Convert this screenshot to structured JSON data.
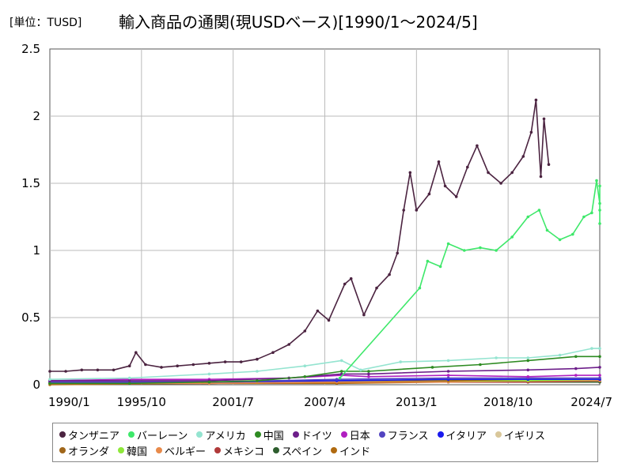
{
  "unit_label": "[単位：TUSD]",
  "title": "輸入商品の通関(現USDベース)[1990/1～2024/5]",
  "chart_data": {
    "type": "line",
    "x_ticks": [
      "1990/1",
      "1995/10",
      "2001/7",
      "2007/4",
      "2013/1",
      "2018/10",
      "2024/7"
    ],
    "y_ticks": [
      "0",
      "0.5",
      "1",
      "1.5",
      "2",
      "2.5"
    ],
    "ylim": [
      0,
      2.5
    ],
    "xlim": [
      1990.0,
      2024.5
    ],
    "grid": true,
    "legend_position": "bottom",
    "series": [
      {
        "name": "タンザニア",
        "color": "#4b2340",
        "points": [
          [
            1990.0,
            0.1
          ],
          [
            1991.0,
            0.1
          ],
          [
            1992.0,
            0.11
          ],
          [
            1993.0,
            0.11
          ],
          [
            1994.0,
            0.11
          ],
          [
            1995.0,
            0.14
          ],
          [
            1995.4,
            0.24
          ],
          [
            1996.0,
            0.15
          ],
          [
            1997.0,
            0.13
          ],
          [
            1998.0,
            0.14
          ],
          [
            1999.0,
            0.15
          ],
          [
            2000.0,
            0.16
          ],
          [
            2001.0,
            0.17
          ],
          [
            2002.0,
            0.17
          ],
          [
            2003.0,
            0.19
          ],
          [
            2004.0,
            0.24
          ],
          [
            2005.0,
            0.3
          ],
          [
            2006.0,
            0.4
          ],
          [
            2006.8,
            0.55
          ],
          [
            2007.5,
            0.48
          ],
          [
            2008.5,
            0.75
          ],
          [
            2008.9,
            0.79
          ],
          [
            2009.7,
            0.52
          ],
          [
            2010.5,
            0.72
          ],
          [
            2011.3,
            0.82
          ],
          [
            2011.8,
            0.98
          ],
          [
            2012.2,
            1.3
          ],
          [
            2012.6,
            1.58
          ],
          [
            2013.0,
            1.3
          ],
          [
            2013.8,
            1.42
          ],
          [
            2014.4,
            1.66
          ],
          [
            2014.8,
            1.48
          ],
          [
            2015.5,
            1.4
          ],
          [
            2016.2,
            1.62
          ],
          [
            2016.8,
            1.78
          ],
          [
            2017.5,
            1.58
          ],
          [
            2018.3,
            1.5
          ],
          [
            2019.0,
            1.58
          ],
          [
            2019.7,
            1.7
          ],
          [
            2020.2,
            1.88
          ],
          [
            2020.5,
            2.12
          ],
          [
            2020.8,
            1.55
          ],
          [
            2021.0,
            1.98
          ],
          [
            2021.3,
            1.64
          ]
        ]
      },
      {
        "name": "バーレーン",
        "color": "#3ee86a",
        "points": [
          [
            2008.2,
            0.05
          ],
          [
            2013.2,
            0.72
          ],
          [
            2013.7,
            0.92
          ],
          [
            2014.5,
            0.88
          ],
          [
            2015.0,
            1.05
          ],
          [
            2016.0,
            1.0
          ],
          [
            2017.0,
            1.02
          ],
          [
            2018.0,
            1.0
          ],
          [
            2019.0,
            1.1
          ],
          [
            2020.0,
            1.25
          ],
          [
            2020.7,
            1.3
          ],
          [
            2021.2,
            1.15
          ],
          [
            2022.0,
            1.08
          ],
          [
            2022.8,
            1.12
          ],
          [
            2023.5,
            1.25
          ],
          [
            2024.0,
            1.28
          ],
          [
            2024.3,
            1.52
          ],
          [
            2024.5,
            1.35
          ],
          [
            2025.0,
            1.3
          ],
          [
            2025.8,
            1.48
          ],
          [
            2026.0,
            1.2
          ]
        ]
      },
      {
        "name": "アメリカ",
        "color": "#94e4d0",
        "points": [
          [
            1990.0,
            0.04
          ],
          [
            1995.0,
            0.05
          ],
          [
            2000.0,
            0.08
          ],
          [
            2003.0,
            0.1
          ],
          [
            2006.0,
            0.14
          ],
          [
            2008.3,
            0.18
          ],
          [
            2009.5,
            0.11
          ],
          [
            2012.0,
            0.17
          ],
          [
            2015.0,
            0.18
          ],
          [
            2018.0,
            0.2
          ],
          [
            2020.0,
            0.2
          ],
          [
            2022.0,
            0.22
          ],
          [
            2024.0,
            0.27
          ],
          [
            2026.0,
            0.27
          ]
        ]
      },
      {
        "name": "中国",
        "color": "#2e8b22",
        "points": [
          [
            1990.0,
            0.01
          ],
          [
            1995.0,
            0.01
          ],
          [
            2000.0,
            0.02
          ],
          [
            2003.0,
            0.03
          ],
          [
            2006.0,
            0.06
          ],
          [
            2008.3,
            0.1
          ],
          [
            2010.0,
            0.1
          ],
          [
            2014.0,
            0.13
          ],
          [
            2017.0,
            0.15
          ],
          [
            2020.0,
            0.18
          ],
          [
            2023.0,
            0.21
          ],
          [
            2026.0,
            0.21
          ]
        ]
      },
      {
        "name": "ドイツ",
        "color": "#6d1f8a",
        "points": [
          [
            1990.0,
            0.03
          ],
          [
            1995.0,
            0.03
          ],
          [
            2000.0,
            0.03
          ],
          [
            2005.0,
            0.05
          ],
          [
            2008.3,
            0.08
          ],
          [
            2010.0,
            0.08
          ],
          [
            2015.0,
            0.1
          ],
          [
            2020.0,
            0.11
          ],
          [
            2023.0,
            0.12
          ],
          [
            2026.0,
            0.13
          ]
        ]
      },
      {
        "name": "日本",
        "color": "#b01fc0",
        "points": [
          [
            1990.0,
            0.03
          ],
          [
            1995.0,
            0.04
          ],
          [
            2000.0,
            0.04
          ],
          [
            2005.0,
            0.05
          ],
          [
            2008.3,
            0.07
          ],
          [
            2010.0,
            0.06
          ],
          [
            2015.0,
            0.07
          ],
          [
            2020.0,
            0.06
          ],
          [
            2023.0,
            0.07
          ],
          [
            2026.0,
            0.07
          ]
        ]
      },
      {
        "name": "フランス",
        "color": "#5244c0",
        "points": [
          [
            1990.0,
            0.02
          ],
          [
            2000.0,
            0.02
          ],
          [
            2008.0,
            0.04
          ],
          [
            2015.0,
            0.05
          ],
          [
            2020.0,
            0.05
          ],
          [
            2026.0,
            0.05
          ]
        ]
      },
      {
        "name": "イタリア",
        "color": "#1a1aee",
        "points": [
          [
            1990.0,
            0.02
          ],
          [
            2000.0,
            0.02
          ],
          [
            2008.0,
            0.03
          ],
          [
            2015.0,
            0.04
          ],
          [
            2020.0,
            0.04
          ],
          [
            2026.0,
            0.04
          ]
        ]
      },
      {
        "name": "イギリス",
        "color": "#d9c79a",
        "points": [
          [
            1990.0,
            0.02
          ],
          [
            2000.0,
            0.02
          ],
          [
            2008.0,
            0.03
          ],
          [
            2015.0,
            0.04
          ],
          [
            2020.0,
            0.04
          ],
          [
            2026.0,
            0.05
          ]
        ]
      },
      {
        "name": "オランダ",
        "color": "#a0661a",
        "points": [
          [
            1990.0,
            0.01
          ],
          [
            2000.0,
            0.02
          ],
          [
            2008.0,
            0.03
          ],
          [
            2015.0,
            0.03
          ],
          [
            2020.0,
            0.04
          ],
          [
            2026.0,
            0.04
          ]
        ]
      },
      {
        "name": "韓国",
        "color": "#8ee83a",
        "points": [
          [
            1990.0,
            0.01
          ],
          [
            2000.0,
            0.02
          ],
          [
            2008.0,
            0.03
          ],
          [
            2015.0,
            0.03
          ],
          [
            2020.0,
            0.03
          ],
          [
            2026.0,
            0.04
          ]
        ]
      },
      {
        "name": "ベルギー",
        "color": "#e88a4a",
        "points": [
          [
            1990.0,
            0.01
          ],
          [
            2000.0,
            0.01
          ],
          [
            2008.0,
            0.02
          ],
          [
            2015.0,
            0.02
          ],
          [
            2020.0,
            0.03
          ],
          [
            2026.0,
            0.03
          ]
        ]
      },
      {
        "name": "メキシコ",
        "color": "#b03a3a",
        "points": [
          [
            1990.0,
            0.01
          ],
          [
            2000.0,
            0.01
          ],
          [
            2008.0,
            0.02
          ],
          [
            2015.0,
            0.02
          ],
          [
            2020.0,
            0.02
          ],
          [
            2026.0,
            0.03
          ]
        ]
      },
      {
        "name": "スペイン",
        "color": "#2e5e2e",
        "points": [
          [
            1990.0,
            0.01
          ],
          [
            2000.0,
            0.01
          ],
          [
            2008.0,
            0.02
          ],
          [
            2015.0,
            0.02
          ],
          [
            2020.0,
            0.02
          ],
          [
            2026.0,
            0.02
          ]
        ]
      },
      {
        "name": "インド",
        "color": "#b06a10",
        "points": [
          [
            1990.0,
            0.0
          ],
          [
            2000.0,
            0.01
          ],
          [
            2008.0,
            0.01
          ],
          [
            2015.0,
            0.02
          ],
          [
            2020.0,
            0.02
          ],
          [
            2026.0,
            0.02
          ]
        ]
      }
    ]
  }
}
